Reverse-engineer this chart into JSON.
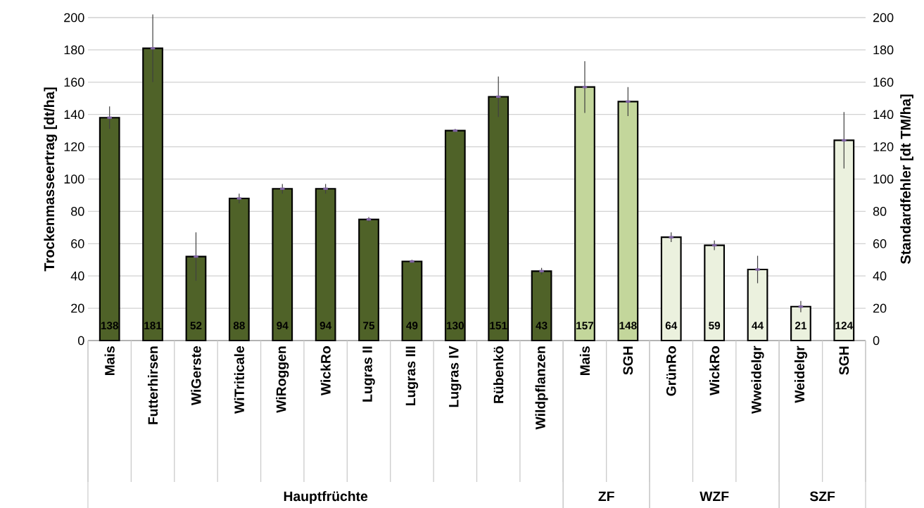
{
  "chart_data": {
    "type": "bar",
    "ylabel": "Trockenmasseertrag [dt/ha]",
    "y2label": "Standardfehler [dt TM/ha]",
    "categories": [
      "Mais",
      "Futterhirsen",
      "WiGerste",
      "WiTriticale",
      "WiRoggen",
      "WickRo",
      "Lugras II",
      "Lugras III",
      "Lugras IV",
      "Rübenkö",
      "Wildpflanzen",
      "Mais",
      "SGH",
      "GrünRo",
      "WickRo",
      "Wweidelgr",
      "Weidelgr",
      "SGH"
    ],
    "series": [
      {
        "color": "#4f6228",
        "values": [
          138,
          181,
          52,
          88,
          94,
          94,
          75,
          49,
          130,
          151,
          43,
          null,
          null,
          null,
          null,
          null,
          null,
          null
        ],
        "errors": [
          7,
          21,
          15,
          3,
          3,
          3,
          1.5,
          1,
          1,
          12.5,
          2,
          null,
          null,
          null,
          null,
          null,
          null,
          null
        ]
      },
      {
        "color": "#c3d69b",
        "values": [
          null,
          null,
          null,
          null,
          null,
          null,
          null,
          null,
          null,
          null,
          null,
          157,
          148,
          null,
          null,
          null,
          null,
          null
        ],
        "errors": [
          null,
          null,
          null,
          null,
          null,
          null,
          null,
          null,
          null,
          null,
          null,
          16,
          9,
          null,
          null,
          null,
          null,
          null
        ]
      },
      {
        "color": "#ebf1de",
        "values": [
          null,
          null,
          null,
          null,
          null,
          null,
          null,
          null,
          null,
          null,
          null,
          null,
          null,
          64,
          59,
          44,
          null,
          null
        ],
        "errors": [
          null,
          null,
          null,
          null,
          null,
          null,
          null,
          null,
          null,
          null,
          null,
          null,
          null,
          3,
          3,
          8.5,
          null,
          null
        ]
      },
      {
        "color": "#ebf1de",
        "values": [
          null,
          null,
          null,
          null,
          null,
          null,
          null,
          null,
          null,
          null,
          null,
          null,
          null,
          null,
          null,
          null,
          21,
          124
        ],
        "errors": [
          null,
          null,
          null,
          null,
          null,
          null,
          null,
          null,
          null,
          null,
          null,
          null,
          null,
          null,
          null,
          null,
          3.5,
          17.5
        ]
      }
    ],
    "ylim": [
      0,
      200
    ],
    "yticks": [
      0,
      20,
      40,
      60,
      80,
      100,
      120,
      140,
      160,
      180,
      200
    ],
    "y2lim": [
      0,
      200
    ],
    "y2ticks": [
      0,
      20,
      40,
      60,
      80,
      100,
      120,
      140,
      160,
      180,
      200
    ],
    "annotations": [
      "Hauptfrüchte",
      "ZF",
      "WZF",
      "SZF"
    ],
    "grid": "y",
    "data_labels": true
  }
}
